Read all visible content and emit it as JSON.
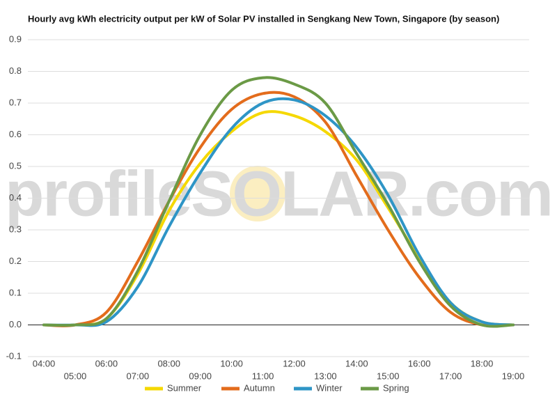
{
  "chart_data": {
    "type": "line",
    "title": "Hourly avg kWh electricity output per kW of Solar PV installed in Sengkang New Town, Singapore (by season)",
    "watermark": "profileSOLAR.com",
    "categories": [
      "04:00",
      "05:00",
      "06:00",
      "07:00",
      "08:00",
      "09:00",
      "10:00",
      "11:00",
      "12:00",
      "13:00",
      "14:00",
      "15:00",
      "16:00",
      "17:00",
      "18:00",
      "19:00"
    ],
    "series": [
      {
        "name": "Summer",
        "color": "#f5d800",
        "values": [
          0,
          0,
          0.02,
          0.16,
          0.36,
          0.51,
          0.61,
          0.67,
          0.66,
          0.61,
          0.52,
          0.37,
          0.21,
          0.07,
          0.01,
          0
        ]
      },
      {
        "name": "Autumn",
        "color": "#e36c1c",
        "values": [
          0,
          0,
          0.04,
          0.2,
          0.39,
          0.56,
          0.68,
          0.73,
          0.72,
          0.64,
          0.47,
          0.3,
          0.15,
          0.04,
          0,
          0
        ]
      },
      {
        "name": "Winter",
        "color": "#2e95c6",
        "values": [
          0,
          0,
          0.01,
          0.12,
          0.31,
          0.48,
          0.62,
          0.7,
          0.71,
          0.66,
          0.56,
          0.41,
          0.22,
          0.07,
          0.01,
          0
        ]
      },
      {
        "name": "Spring",
        "color": "#6b9a46",
        "values": [
          0,
          0,
          0.02,
          0.17,
          0.39,
          0.6,
          0.74,
          0.78,
          0.76,
          0.7,
          0.54,
          0.38,
          0.2,
          0.06,
          0,
          0
        ]
      }
    ],
    "ylim": [
      -0.1,
      0.9
    ],
    "yticks": [
      -0.1,
      {
        "value": 0,
        "label": "0.0"
      },
      0.1,
      0.2,
      0.3,
      0.4,
      0.5,
      0.6,
      0.7,
      0.8,
      0.9
    ],
    "grid": true,
    "legend": "bottom"
  }
}
